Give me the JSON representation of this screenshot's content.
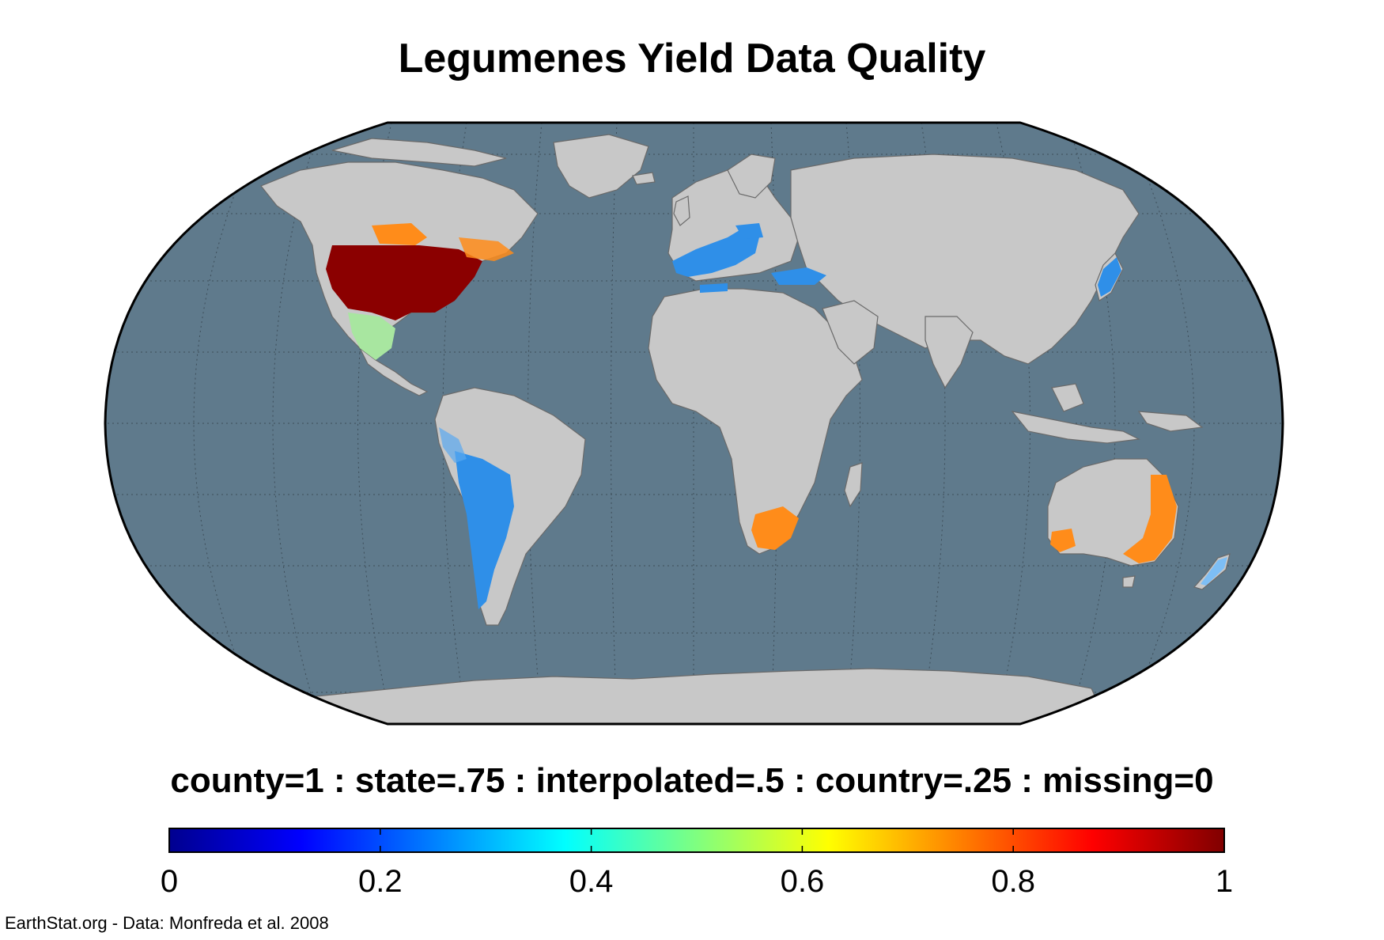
{
  "title": "Legumenes Yield Data Quality",
  "caption": "county=1 : state=.75 : interpolated=.5 : country=.25 : missing=0",
  "credit": "EarthStat.org - Data: Monfreda et al. 2008",
  "colors": {
    "ocean": "#5f7a8c",
    "land": "#c8c8c8",
    "county": "#8b0000",
    "state": "#ff8c1a",
    "interpolated": "#a8e6a0",
    "country": "#2f8fe8",
    "border": "#000000"
  },
  "colorbar": {
    "min": 0,
    "max": 1,
    "colormap": "jet",
    "ticks": [
      "0",
      "0.2",
      "0.4",
      "0.6",
      "0.8",
      "1"
    ],
    "tick_values": [
      0,
      0.2,
      0.4,
      0.6,
      0.8,
      1
    ]
  },
  "regions": [
    {
      "name": "United States",
      "quality": "county"
    },
    {
      "name": "Canada",
      "quality": "state"
    },
    {
      "name": "Mexico",
      "quality": "interpolated"
    },
    {
      "name": "Europe",
      "quality": "country"
    },
    {
      "name": "Turkey",
      "quality": "country"
    },
    {
      "name": "Japan",
      "quality": "country"
    },
    {
      "name": "Argentina",
      "quality": "country"
    },
    {
      "name": "South Africa",
      "quality": "state"
    },
    {
      "name": "Australia",
      "quality": "state"
    },
    {
      "name": "New Zealand",
      "quality": "country"
    }
  ]
}
